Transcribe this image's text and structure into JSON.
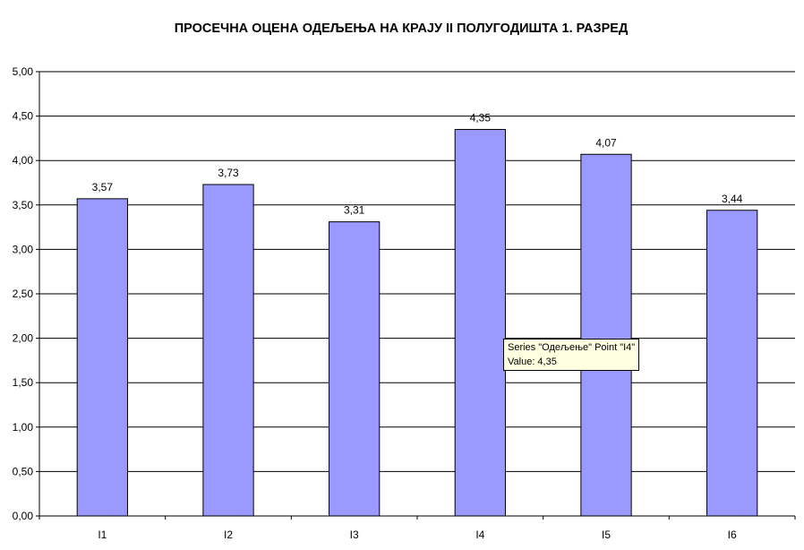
{
  "chart_data": {
    "type": "bar",
    "title": "ПРОСЕЧНА ОЦЕНА ОДЕЉЕЊА НА КРАЈУ  II ПОЛУГОДИШТА 1. РАЗРЕД",
    "categories": [
      "I1",
      "I2",
      "I3",
      "I4",
      "I5",
      "I6"
    ],
    "series": [
      {
        "values": [
          3.57,
          3.73,
          3.31,
          4.35,
          4.07,
          3.44
        ]
      }
    ],
    "data_labels": [
      "3,57",
      "3,73",
      "3,31",
      "4,35",
      "4,07",
      "3,44"
    ],
    "ylim": [
      0,
      5
    ],
    "yticks": [
      "0,00",
      "0,50",
      "1,00",
      "1,50",
      "2,00",
      "2,50",
      "3,00",
      "3,50",
      "4,00",
      "4,50",
      "5,00"
    ],
    "grid": true,
    "legend": "none",
    "colors": {
      "bar_fill": "#9999ff",
      "bar_stroke": "#000000",
      "grid": "#000000"
    }
  },
  "tooltip": {
    "line1": "Series \"Одељење\" Point \"I4\"",
    "line2": "Value: 4,35"
  }
}
